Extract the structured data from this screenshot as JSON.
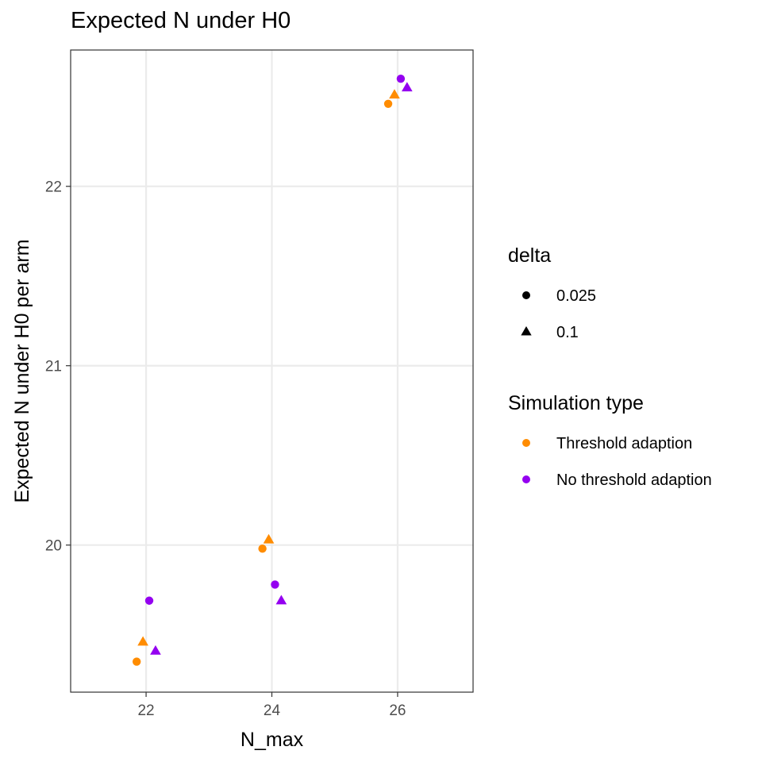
{
  "chart_data": {
    "type": "scatter",
    "title": "Expected N under H0",
    "xlabel": "N_max",
    "ylabel": "Expected N under H0 per arm",
    "xlim": [
      20.8,
      27.2
    ],
    "ylim": [
      19.18,
      22.76
    ],
    "x_ticks": [
      22,
      24,
      26
    ],
    "y_ticks": [
      20,
      21,
      22
    ],
    "grid": true,
    "legend_position": "right",
    "legends": [
      {
        "title": "delta",
        "aesthetic": "shape",
        "entries": [
          {
            "label": "0.025",
            "shape": "circle"
          },
          {
            "label": "0.1",
            "shape": "triangle"
          }
        ]
      },
      {
        "title": "Simulation type",
        "aesthetic": "color",
        "entries": [
          {
            "label": "Threshold adaption",
            "color": "#FF8C00"
          },
          {
            "label": "No threshold adaption",
            "color": "#9400F0"
          }
        ]
      }
    ],
    "series": [
      {
        "simulation_type": "Threshold adaption",
        "delta": "0.025",
        "color": "#FF8C00",
        "shape": "circle",
        "points": [
          {
            "x": 22,
            "y": 19.35
          },
          {
            "x": 24,
            "y": 19.98
          },
          {
            "x": 26,
            "y": 22.46
          }
        ]
      },
      {
        "simulation_type": "Threshold adaption",
        "delta": "0.1",
        "color": "#FF8C00",
        "shape": "triangle",
        "points": [
          {
            "x": 22,
            "y": 19.46
          },
          {
            "x": 24,
            "y": 20.03
          },
          {
            "x": 26,
            "y": 22.51
          }
        ]
      },
      {
        "simulation_type": "No threshold adaption",
        "delta": "0.025",
        "color": "#9400F0",
        "shape": "circle",
        "points": [
          {
            "x": 22,
            "y": 19.69
          },
          {
            "x": 24,
            "y": 19.78
          },
          {
            "x": 26,
            "y": 22.6
          }
        ]
      },
      {
        "simulation_type": "No threshold adaption",
        "delta": "0.1",
        "color": "#9400F0",
        "shape": "triangle",
        "points": [
          {
            "x": 22,
            "y": 19.41
          },
          {
            "x": 24,
            "y": 19.69
          },
          {
            "x": 26,
            "y": 22.55
          }
        ]
      }
    ]
  }
}
